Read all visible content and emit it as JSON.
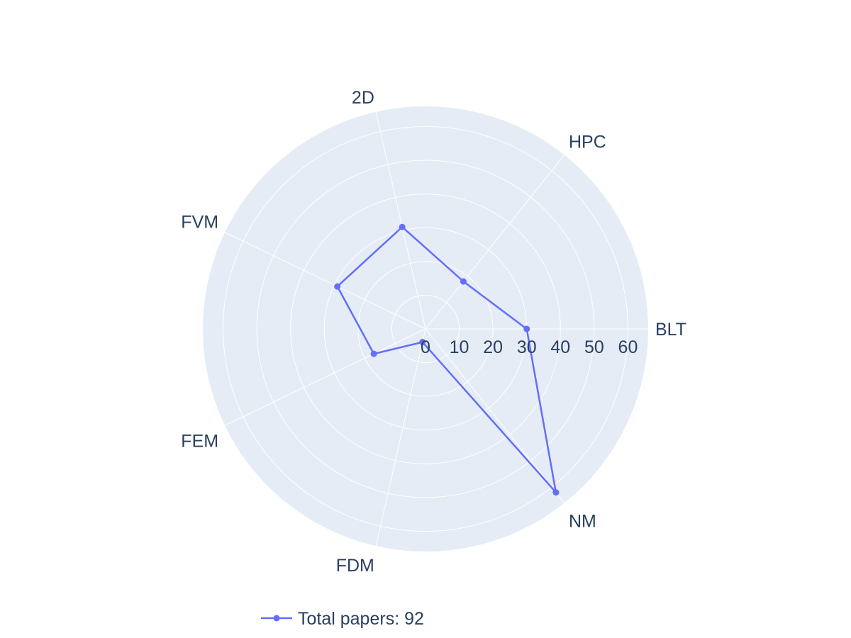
{
  "chart_data": {
    "type": "radar",
    "axes": [
      "BLT",
      "HPC",
      "2D",
      "FVM",
      "FEM",
      "FDM",
      "NM"
    ],
    "series": [
      {
        "name": "Total papers: 92",
        "values": [
          30,
          18,
          31,
          29,
          17,
          4,
          62
        ]
      }
    ],
    "rlim": [
      0,
      66
    ],
    "radial_ticks": [
      0,
      10,
      20,
      30,
      40,
      50,
      60
    ],
    "grid": true,
    "legend_position": "bottom-center",
    "colors": {
      "series": "#636efa",
      "plot_background": "#e5ecf6",
      "grid": "#ffffff",
      "text": "#2a3f5f"
    }
  }
}
